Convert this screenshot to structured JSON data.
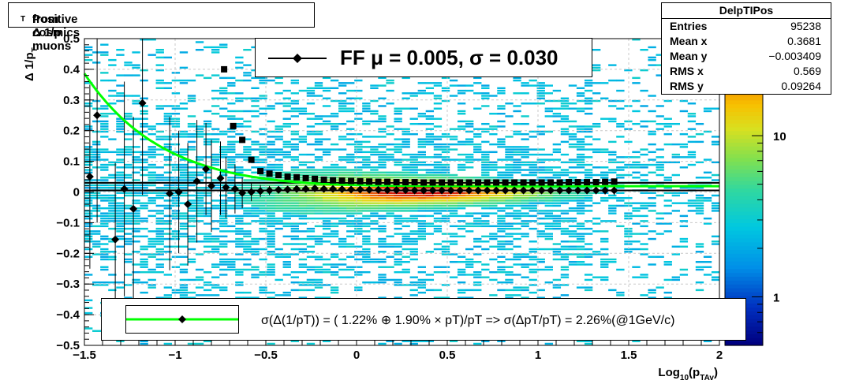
{
  "title": "Positive Δ 1/p",
  "title_sub": "T",
  "title_suffix": " from cosmics muons",
  "stats": {
    "name": "DelpTIPos",
    "rows": [
      {
        "key": "Entries",
        "value": "95238"
      },
      {
        "key": "Mean x",
        "value": "0.3681"
      },
      {
        "key": "Mean y",
        "value": "−0.003409"
      },
      {
        "key": "RMS x",
        "value": "0.569"
      },
      {
        "key": "RMS y",
        "value": "0.09264"
      }
    ]
  },
  "legend_top": {
    "label": "FF μ =  0.005, σ =   0.030"
  },
  "legend_bottom": {
    "label": "σ(Δ(1/pT)) = ( 1.22% ⊕  1.90% × pT)/pT => σ(ΔpT/pT) =  2.26%(@1GeV/c)"
  },
  "colors": {
    "fit_curve": "#00ff00",
    "markers": "#000000",
    "hist_low": "#00c8e0",
    "hist_high": "#e84800"
  },
  "chart_data": {
    "type": "heatmap",
    "xlabel": "Log",
    "xlabel_sub": "10",
    "xlabel_arg": "(p",
    "xlabel_arg_sub": "TAv",
    "xlabel_end": ")",
    "ylabel": "Δ 1/p",
    "ylabel_sub": "T",
    "xlim": [
      -1.5,
      2.0
    ],
    "ylim": [
      -0.5,
      0.5
    ],
    "xticks": [
      -1.5,
      -1,
      -0.5,
      0,
      0.5,
      1,
      1.5,
      2
    ],
    "xtick_labels": [
      "−1.5",
      "−1",
      "−0.5",
      "0",
      "0.5",
      "1",
      "1.5",
      "2"
    ],
    "yticks": [
      -0.5,
      -0.4,
      -0.3,
      -0.2,
      -0.1,
      0,
      0.1,
      0.2,
      0.3,
      0.4,
      0.5
    ],
    "ytick_labels": [
      "−0.5",
      "−0.4",
      "−0.3",
      "−0.2",
      "−0.1",
      "0",
      "0.1",
      "0.2",
      "0.3",
      "0.4",
      "0.5"
    ],
    "colorbar": {
      "scale": "log",
      "labels": [
        "1",
        "10"
      ],
      "label_values": [
        1,
        10
      ],
      "range": [
        0.5,
        40
      ]
    },
    "grid": true,
    "mean_points": [
      {
        "x": -1.47,
        "y": 0.05,
        "err": 0.3
      },
      {
        "x": -1.43,
        "y": 0.25,
        "err": 0.35
      },
      {
        "x": -1.33,
        "y": -0.155,
        "err": 0.25
      },
      {
        "x": -1.28,
        "y": 0.01,
        "err": 0.35
      },
      {
        "x": -1.23,
        "y": -0.055,
        "err": 0.3
      },
      {
        "x": -1.18,
        "y": 0.29,
        "err": 0.3
      },
      {
        "x": -1.03,
        "y": -0.005,
        "err": 0.25
      },
      {
        "x": -0.98,
        "y": 0.0,
        "err": 0.2
      },
      {
        "x": -0.93,
        "y": -0.04,
        "err": 0.2
      },
      {
        "x": -0.88,
        "y": 0.035,
        "err": 0.2
      },
      {
        "x": -0.83,
        "y": 0.075,
        "err": 0.15
      },
      {
        "x": -0.8,
        "y": 0.02,
        "err": 0.15
      },
      {
        "x": -0.75,
        "y": 0.045,
        "err": 0.12
      },
      {
        "x": -0.72,
        "y": 0.015,
        "err": 0.1
      },
      {
        "x": -0.67,
        "y": 0.01,
        "err": 0.08
      },
      {
        "x": -0.63,
        "y": -0.003,
        "err": 0.05
      },
      {
        "x": -0.58,
        "y": 0.0,
        "err": 0.03
      },
      {
        "x": -0.53,
        "y": 0.003,
        "err": 0.02
      },
      {
        "x": -0.48,
        "y": 0.005,
        "err": 0.015
      },
      {
        "x": -0.43,
        "y": 0.007,
        "err": 0.012
      },
      {
        "x": -0.38,
        "y": 0.008,
        "err": 0.01
      },
      {
        "x": -0.33,
        "y": 0.01,
        "err": 0.01
      },
      {
        "x": -0.28,
        "y": 0.01,
        "err": 0.008
      },
      {
        "x": -0.23,
        "y": 0.012,
        "err": 0.008
      },
      {
        "x": -0.18,
        "y": 0.01,
        "err": 0.006
      },
      {
        "x": -0.13,
        "y": 0.01,
        "err": 0.006
      },
      {
        "x": -0.08,
        "y": 0.009,
        "err": 0.005
      },
      {
        "x": -0.03,
        "y": 0.008,
        "err": 0.005
      },
      {
        "x": 0.02,
        "y": 0.008,
        "err": 0.005
      },
      {
        "x": 0.07,
        "y": 0.007,
        "err": 0.005
      },
      {
        "x": 0.12,
        "y": 0.007,
        "err": 0.005
      },
      {
        "x": 0.17,
        "y": 0.006,
        "err": 0.005
      },
      {
        "x": 0.22,
        "y": 0.006,
        "err": 0.005
      },
      {
        "x": 0.27,
        "y": 0.006,
        "err": 0.005
      },
      {
        "x": 0.32,
        "y": 0.005,
        "err": 0.005
      },
      {
        "x": 0.37,
        "y": 0.005,
        "err": 0.005
      },
      {
        "x": 0.42,
        "y": 0.005,
        "err": 0.005
      },
      {
        "x": 0.47,
        "y": 0.005,
        "err": 0.005
      },
      {
        "x": 0.52,
        "y": 0.005,
        "err": 0.005
      },
      {
        "x": 0.57,
        "y": 0.005,
        "err": 0.005
      },
      {
        "x": 0.62,
        "y": 0.005,
        "err": 0.005
      },
      {
        "x": 0.67,
        "y": 0.005,
        "err": 0.005
      },
      {
        "x": 0.72,
        "y": 0.005,
        "err": 0.005
      },
      {
        "x": 0.77,
        "y": 0.005,
        "err": 0.006
      },
      {
        "x": 0.82,
        "y": 0.005,
        "err": 0.006
      },
      {
        "x": 0.87,
        "y": 0.005,
        "err": 0.006
      },
      {
        "x": 0.92,
        "y": 0.005,
        "err": 0.007
      },
      {
        "x": 0.97,
        "y": 0.005,
        "err": 0.007
      },
      {
        "x": 1.02,
        "y": 0.005,
        "err": 0.008
      },
      {
        "x": 1.07,
        "y": 0.005,
        "err": 0.008
      },
      {
        "x": 1.12,
        "y": 0.005,
        "err": 0.009
      },
      {
        "x": 1.17,
        "y": 0.005,
        "err": 0.01
      },
      {
        "x": 1.22,
        "y": 0.005,
        "err": 0.01
      },
      {
        "x": 1.27,
        "y": 0.005,
        "err": 0.011
      },
      {
        "x": 1.32,
        "y": 0.005,
        "err": 0.012
      },
      {
        "x": 1.37,
        "y": 0.005,
        "err": 0.013
      },
      {
        "x": 1.42,
        "y": 0.005,
        "err": 0.015
      }
    ],
    "rms_points": [
      {
        "x": -0.73,
        "y": 0.4
      },
      {
        "x": -0.68,
        "y": 0.215
      },
      {
        "x": -0.63,
        "y": 0.17
      },
      {
        "x": -0.58,
        "y": 0.105
      },
      {
        "x": -0.53,
        "y": 0.068
      },
      {
        "x": -0.48,
        "y": 0.06
      },
      {
        "x": -0.43,
        "y": 0.055
      },
      {
        "x": -0.38,
        "y": 0.05
      },
      {
        "x": -0.33,
        "y": 0.048
      },
      {
        "x": -0.28,
        "y": 0.045
      },
      {
        "x": -0.23,
        "y": 0.043
      },
      {
        "x": -0.18,
        "y": 0.04
      },
      {
        "x": -0.13,
        "y": 0.038
      },
      {
        "x": -0.08,
        "y": 0.037
      },
      {
        "x": -0.03,
        "y": 0.036
      },
      {
        "x": 0.02,
        "y": 0.035
      },
      {
        "x": 0.07,
        "y": 0.034
      },
      {
        "x": 0.12,
        "y": 0.033
      },
      {
        "x": 0.17,
        "y": 0.033
      },
      {
        "x": 0.22,
        "y": 0.032
      },
      {
        "x": 0.27,
        "y": 0.032
      },
      {
        "x": 0.32,
        "y": 0.032
      },
      {
        "x": 0.37,
        "y": 0.031
      },
      {
        "x": 0.42,
        "y": 0.031
      },
      {
        "x": 0.47,
        "y": 0.031
      },
      {
        "x": 0.52,
        "y": 0.031
      },
      {
        "x": 0.57,
        "y": 0.031
      },
      {
        "x": 0.62,
        "y": 0.031
      },
      {
        "x": 0.67,
        "y": 0.031
      },
      {
        "x": 0.72,
        "y": 0.031
      },
      {
        "x": 0.77,
        "y": 0.031
      },
      {
        "x": 0.82,
        "y": 0.031
      },
      {
        "x": 0.87,
        "y": 0.031
      },
      {
        "x": 0.92,
        "y": 0.031
      },
      {
        "x": 0.97,
        "y": 0.031
      },
      {
        "x": 1.02,
        "y": 0.031
      },
      {
        "x": 1.07,
        "y": 0.031
      },
      {
        "x": 1.12,
        "y": 0.031
      },
      {
        "x": 1.17,
        "y": 0.032
      },
      {
        "x": 1.22,
        "y": 0.032
      },
      {
        "x": 1.27,
        "y": 0.032
      },
      {
        "x": 1.32,
        "y": 0.032
      },
      {
        "x": 1.37,
        "y": 0.033
      },
      {
        "x": 1.42,
        "y": 0.034
      }
    ],
    "fit_curve": {
      "a": 0.0122,
      "b": 0.019,
      "x_range": [
        -1.5,
        2.0
      ]
    },
    "mean_line": {
      "y": 0.005
    },
    "sigma_line": {
      "y": 0.03
    }
  }
}
